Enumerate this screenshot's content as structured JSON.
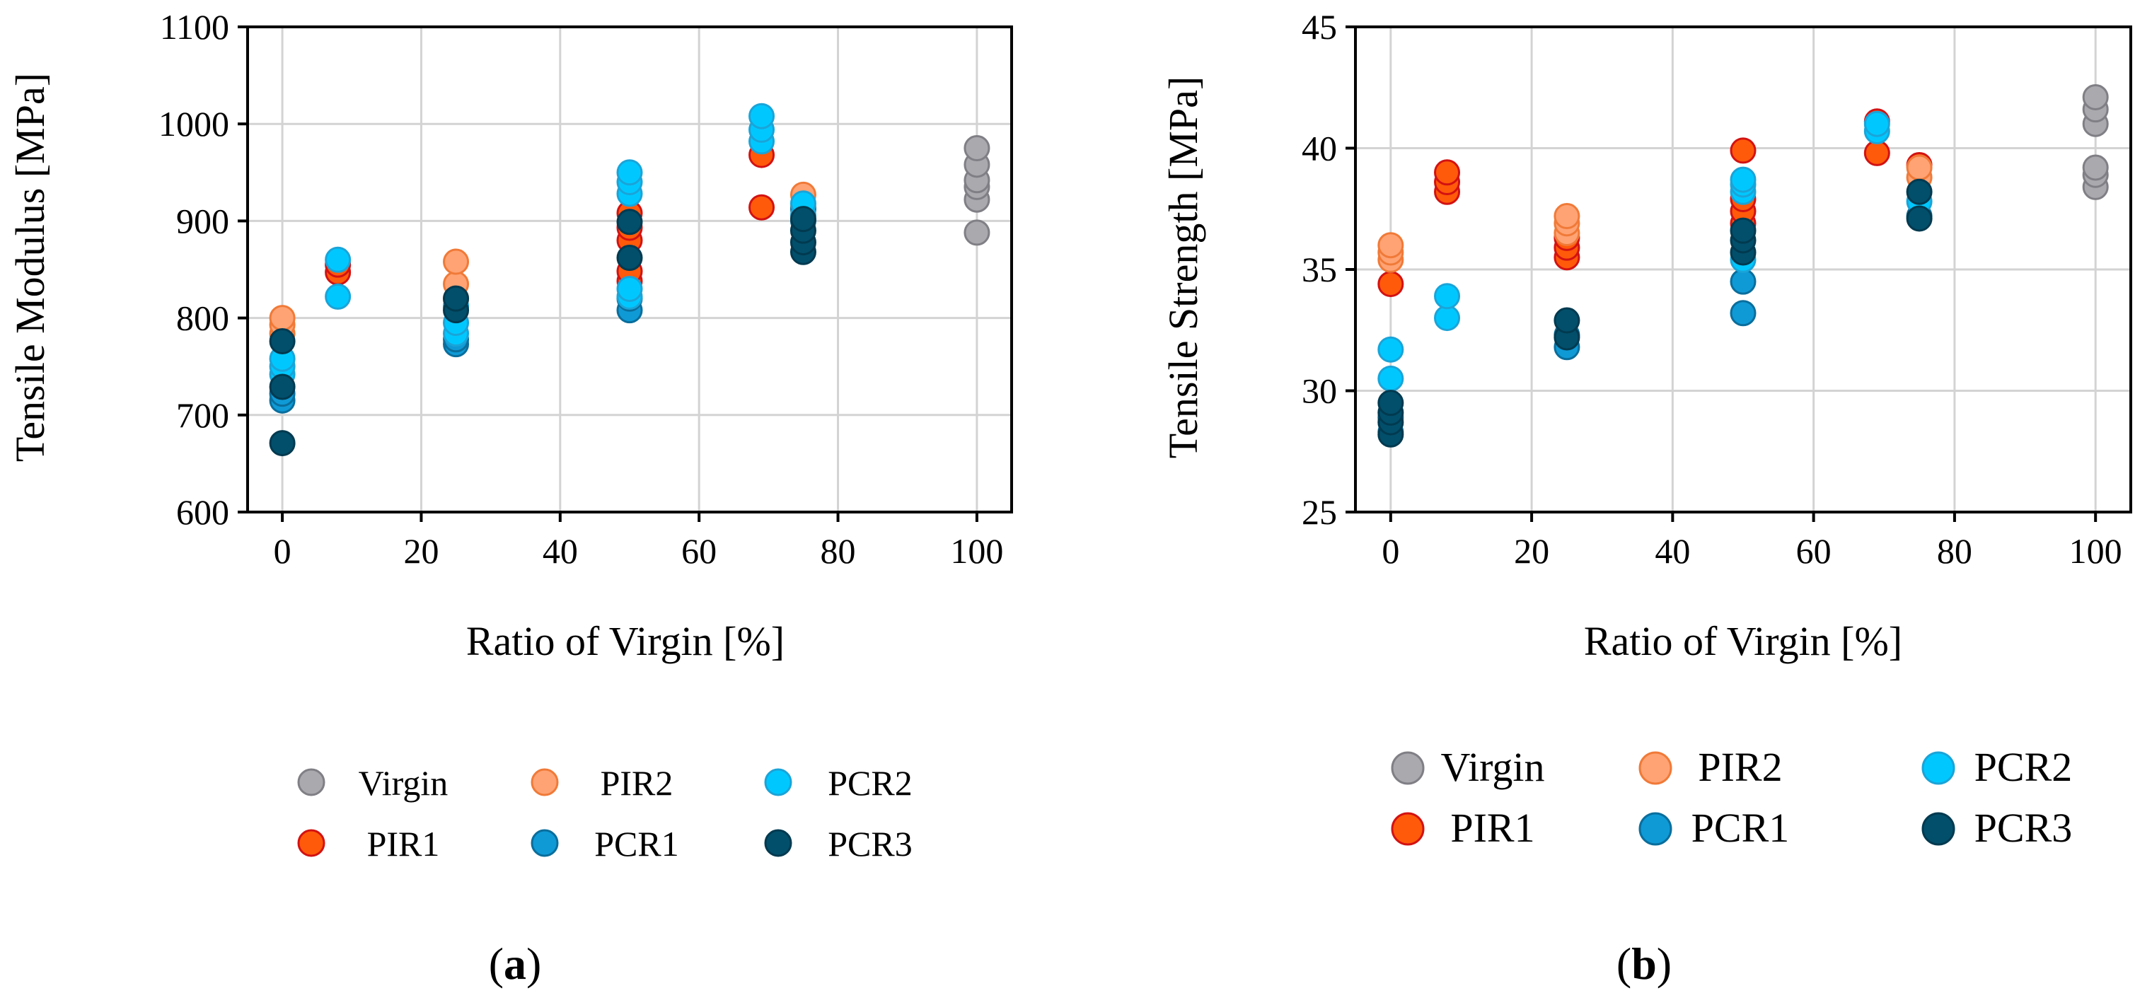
{
  "colors": {
    "Virgin": {
      "fill": "#a9a9ae",
      "stroke": "#7f7f85"
    },
    "PIR1": {
      "fill": "#ff5a0a",
      "stroke": "#d31212"
    },
    "PIR2": {
      "fill": "#ffa374",
      "stroke": "#f07a38"
    },
    "PCR1": {
      "fill": "#0f9ad6",
      "stroke": "#0a6e9c"
    },
    "PCR2": {
      "fill": "#00c8ff",
      "stroke": "#1aa4d8"
    },
    "PCR3": {
      "fill": "#024f6b",
      "stroke": "#013a50"
    },
    "grid": "#d3d3d3"
  },
  "legend_order": [
    "Virgin",
    "PIR2",
    "PCR2",
    "PIR1",
    "PCR1",
    "PCR3"
  ],
  "chart_data": [
    {
      "type": "scatter",
      "panel": "a",
      "caption_label": "a",
      "xlabel": "Ratio of Virgin [%]",
      "ylabel": "Tensile Modulus [MPa]",
      "xlim": [
        -5,
        105
      ],
      "ylim": [
        600,
        1100
      ],
      "xticks": [
        0,
        20,
        40,
        60,
        80,
        100
      ],
      "yticks": [
        600,
        700,
        800,
        900,
        1000,
        1100
      ],
      "grid": true,
      "legend_position": "below",
      "series": [
        {
          "name": "Virgin",
          "x": [
            100,
            100,
            100,
            100,
            100,
            100
          ],
          "y": [
            888,
            922,
            935,
            942,
            958,
            975
          ]
        },
        {
          "name": "PIR1",
          "x": [
            8,
            8,
            50,
            50,
            50,
            50,
            50,
            69,
            69
          ],
          "y": [
            847,
            855,
            838,
            848,
            880,
            893,
            908,
            914,
            968
          ]
        },
        {
          "name": "PIR2",
          "x": [
            0,
            0,
            0,
            25,
            25,
            25,
            75,
            75
          ],
          "y": [
            784,
            793,
            800,
            820,
            835,
            858,
            915,
            927
          ]
        },
        {
          "name": "PCR1",
          "x": [
            0,
            0,
            25,
            25,
            50,
            50,
            75,
            75
          ],
          "y": [
            715,
            722,
            773,
            778,
            808,
            820,
            900,
            912
          ]
        },
        {
          "name": "PCR2",
          "x": [
            0,
            0,
            0,
            8,
            8,
            25,
            25,
            25,
            50,
            50,
            50,
            50,
            50,
            69,
            69,
            69,
            75,
            75
          ],
          "y": [
            742,
            750,
            758,
            822,
            860,
            784,
            795,
            812,
            822,
            830,
            928,
            940,
            950,
            982,
            994,
            1008,
            906,
            918
          ]
        },
        {
          "name": "PCR3",
          "x": [
            0,
            0,
            0,
            25,
            25,
            50,
            50,
            75,
            75,
            75,
            75
          ],
          "y": [
            671,
            729,
            776,
            808,
            820,
            862,
            899,
            868,
            878,
            890,
            902
          ]
        }
      ]
    },
    {
      "type": "scatter",
      "panel": "b",
      "caption_label": "b",
      "xlabel": "Ratio of Virgin [%]",
      "ylabel": "Tensile Strength [MPa]",
      "xlim": [
        -5,
        105
      ],
      "ylim": [
        25,
        45
      ],
      "xticks": [
        0,
        20,
        40,
        60,
        80,
        100
      ],
      "yticks": [
        25,
        30,
        35,
        40,
        45
      ],
      "grid": true,
      "legend_position": "below",
      "series": [
        {
          "name": "Virgin",
          "x": [
            100,
            100,
            100,
            100,
            100,
            100
          ],
          "y": [
            38.4,
            38.9,
            39.2,
            41.0,
            41.6,
            42.1
          ]
        },
        {
          "name": "PIR1",
          "x": [
            0,
            8,
            8,
            8,
            25,
            25,
            25,
            50,
            50,
            50,
            50,
            69,
            69,
            75
          ],
          "y": [
            34.4,
            38.2,
            38.6,
            39.0,
            35.5,
            35.9,
            36.3,
            36.9,
            37.4,
            37.9,
            39.9,
            39.8,
            41.1,
            39.3
          ]
        },
        {
          "name": "PIR2",
          "x": [
            0,
            0,
            0,
            25,
            25,
            25,
            75,
            75
          ],
          "y": [
            35.4,
            35.7,
            36.0,
            36.5,
            36.9,
            37.2,
            38.8,
            39.2
          ]
        },
        {
          "name": "PCR1",
          "x": [
            0,
            0,
            25,
            25,
            50,
            50,
            75
          ],
          "y": [
            28.3,
            28.9,
            31.8,
            32.3,
            33.2,
            34.5,
            37.2
          ]
        },
        {
          "name": "PCR2",
          "x": [
            0,
            0,
            8,
            8,
            50,
            50,
            50,
            50,
            69,
            69,
            75
          ],
          "y": [
            30.5,
            31.7,
            33.0,
            33.9,
            35.4,
            38.2,
            38.5,
            38.7,
            40.7,
            41.0,
            37.8
          ]
        },
        {
          "name": "PCR3",
          "x": [
            0,
            0,
            0,
            0,
            25,
            25,
            50,
            50,
            50,
            75,
            75
          ],
          "y": [
            28.2,
            28.7,
            29.1,
            29.5,
            32.2,
            32.9,
            35.7,
            36.2,
            36.6,
            37.1,
            38.2
          ]
        }
      ]
    }
  ]
}
